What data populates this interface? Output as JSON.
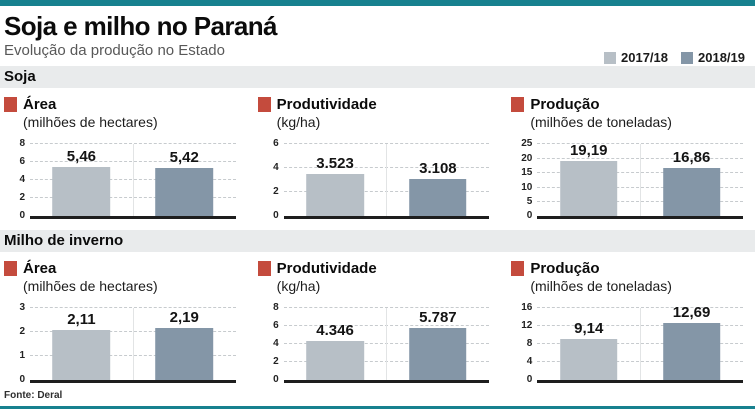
{
  "page": {
    "title": "Soja e milho no Paraná",
    "subtitle": "Evolução da produção no Estado",
    "source": "Fonte: Deral"
  },
  "colors": {
    "accent_teal": "#17818f",
    "icon_red": "#c44b3d",
    "band_bg": "#e9ebec",
    "bar_2017_18": "#b7bfc6",
    "bar_2018_19": "#8496a7"
  },
  "legend": {
    "items": [
      {
        "label": "2017/18",
        "color": "#b7bfc6"
      },
      {
        "label": "2018/19",
        "color": "#8496a7"
      }
    ]
  },
  "sections": [
    {
      "label": "Soja"
    },
    {
      "label": "Milho de inverno"
    }
  ],
  "chart_data": [
    {
      "id": "soja-area",
      "type": "bar",
      "section": "Soja",
      "title": "Área",
      "unit": "(milhões de hectares)",
      "categories": [
        "2017/18",
        "2018/19"
      ],
      "values": [
        5.46,
        5.42
      ],
      "value_labels": [
        "5,46",
        "5,42"
      ],
      "ylim": [
        0,
        8
      ],
      "yticks": [
        0,
        2,
        4,
        6,
        8
      ],
      "grid": "dashed-horizontal",
      "legend_position": "page-top-right"
    },
    {
      "id": "soja-produtividade",
      "type": "bar",
      "section": "Soja",
      "title": "Produtividade",
      "unit": "(kg/ha)",
      "categories": [
        "2017/18",
        "2018/19"
      ],
      "values": [
        3.523,
        3.108
      ],
      "value_labels": [
        "3.523",
        "3.108"
      ],
      "ylim": [
        0,
        6
      ],
      "yticks": [
        0,
        2,
        4,
        6
      ],
      "grid": "dashed-horizontal",
      "legend_position": "page-top-right"
    },
    {
      "id": "soja-producao",
      "type": "bar",
      "section": "Soja",
      "title": "Produção",
      "unit": "(milhões de toneladas)",
      "categories": [
        "2017/18",
        "2018/19"
      ],
      "values": [
        19.19,
        16.86
      ],
      "value_labels": [
        "19,19",
        "16,86"
      ],
      "ylim": [
        0,
        25
      ],
      "yticks": [
        0,
        5,
        10,
        15,
        20,
        25
      ],
      "grid": "dashed-horizontal",
      "legend_position": "page-top-right"
    },
    {
      "id": "milho-area",
      "type": "bar",
      "section": "Milho de inverno",
      "title": "Área",
      "unit": "(milhões de hectares)",
      "categories": [
        "2017/18",
        "2018/19"
      ],
      "values": [
        2.11,
        2.19
      ],
      "value_labels": [
        "2,11",
        "2,19"
      ],
      "ylim": [
        0,
        3
      ],
      "yticks": [
        0,
        1,
        2,
        3
      ],
      "grid": "dashed-horizontal",
      "legend_position": "page-top-right"
    },
    {
      "id": "milho-produtividade",
      "type": "bar",
      "section": "Milho de inverno",
      "title": "Produtividade",
      "unit": "(kg/ha)",
      "categories": [
        "2017/18",
        "2018/19"
      ],
      "values": [
        4.346,
        5.787
      ],
      "value_labels": [
        "4.346",
        "5.787"
      ],
      "ylim": [
        0,
        8
      ],
      "yticks": [
        0,
        2,
        4,
        6,
        8
      ],
      "grid": "dashed-horizontal",
      "legend_position": "page-top-right"
    },
    {
      "id": "milho-producao",
      "type": "bar",
      "section": "Milho de inverno",
      "title": "Produção",
      "unit": "(milhões de toneladas)",
      "categories": [
        "2017/18",
        "2018/19"
      ],
      "values": [
        9.14,
        12.69
      ],
      "value_labels": [
        "9,14",
        "12,69"
      ],
      "ylim": [
        0,
        16
      ],
      "yticks": [
        0,
        4,
        8,
        12,
        16
      ],
      "grid": "dashed-horizontal",
      "legend_position": "page-top-right"
    }
  ]
}
